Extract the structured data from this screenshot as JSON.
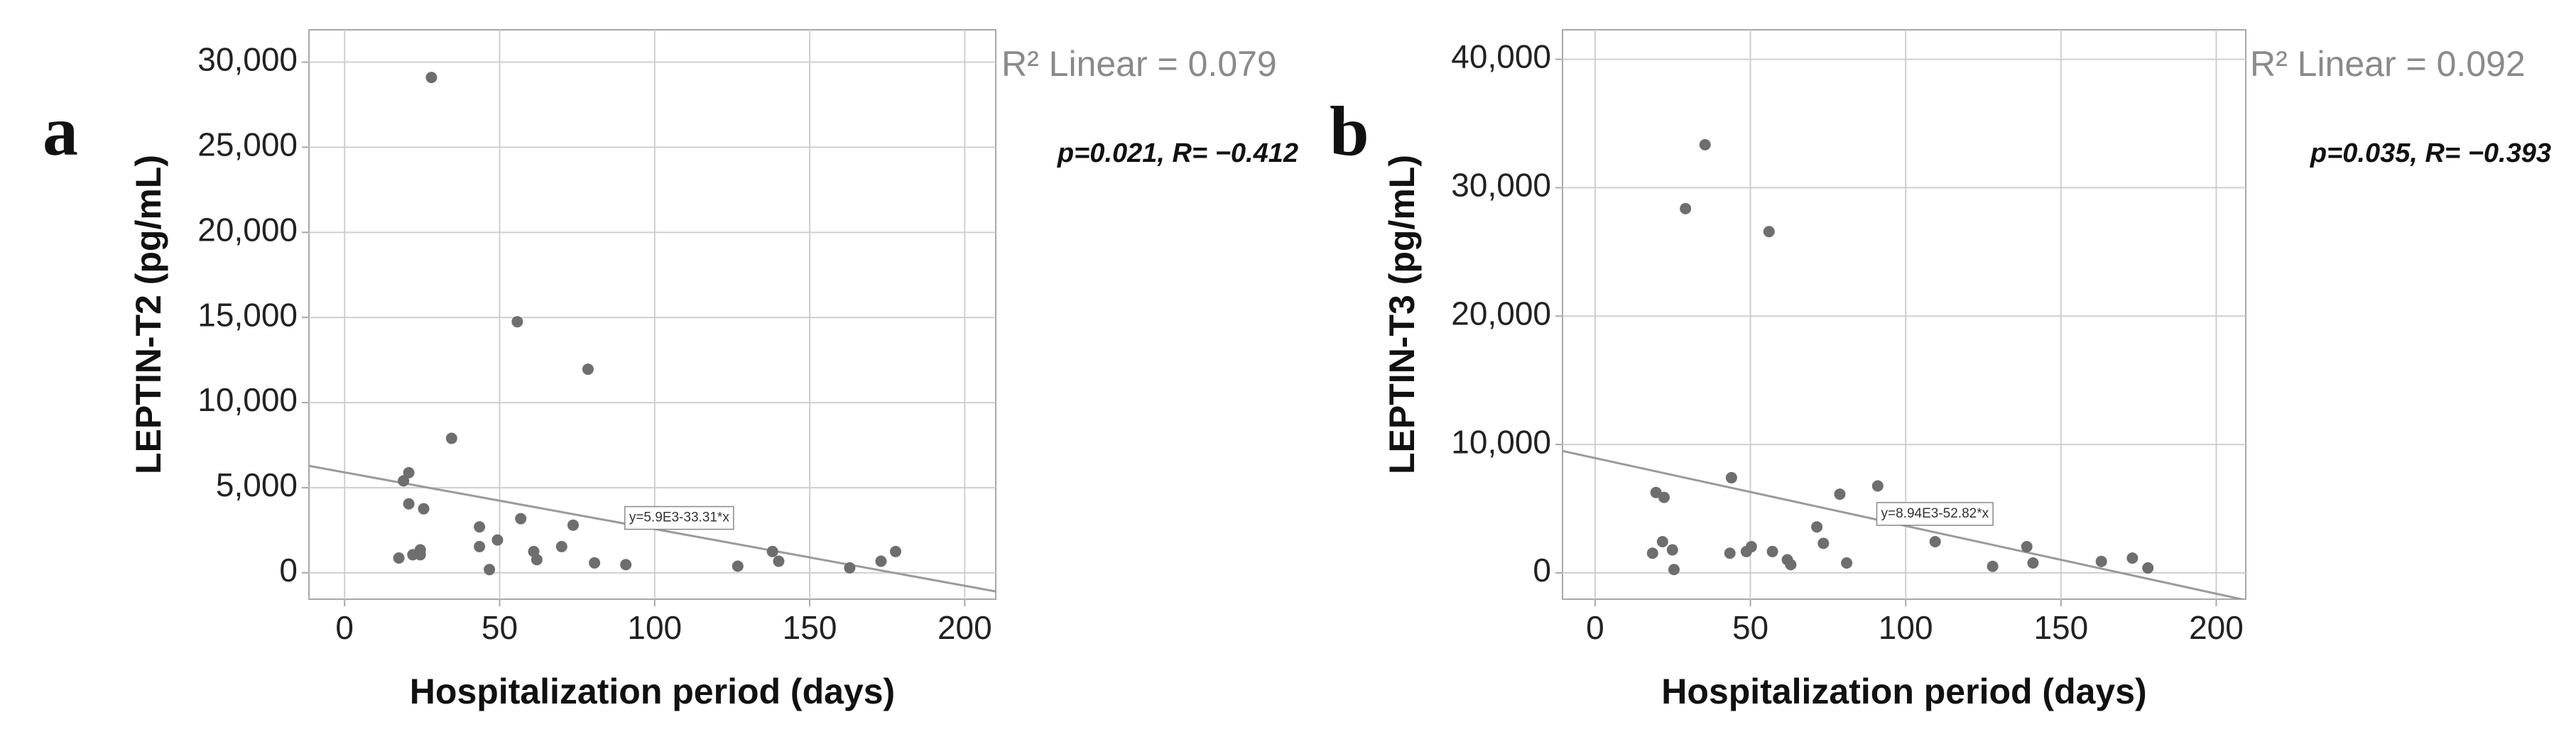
{
  "chart_data": [
    {
      "type": "scatter",
      "panel_label": "a",
      "x_label": "Hospitalization period (days)",
      "y_label": "LEPTIN-T2 (pg/mL)",
      "r_squared_label": "R² Linear = 0.079",
      "stats_label": "p=0.021, R= −0.412",
      "fit": {
        "label": "y=5.9E3-33.31*x",
        "intercept": 5900,
        "slope": -33.31
      },
      "color": "#6e6e6e",
      "grid": true,
      "xlim": [
        -11.5,
        210
      ],
      "ylim": [
        -1550,
        31900
      ],
      "xticks": [
        0,
        50,
        100,
        150,
        200
      ],
      "yticks": [
        0,
        {
          "value": 5000,
          "label": "5,000"
        },
        {
          "value": 10000,
          "label": "10,000"
        },
        {
          "value": 15000,
          "label": "15,000"
        },
        {
          "value": 20000,
          "label": "20,000"
        },
        {
          "value": 25000,
          "label": "25,000"
        },
        {
          "value": 30000,
          "label": "30,000"
        }
      ],
      "x": [
        17.5,
        19,
        20.7,
        20.7,
        22,
        24.4,
        24.4,
        25.5,
        28,
        34.5,
        43.5,
        43.5,
        46.7,
        49.3,
        55.7,
        56.8,
        61,
        62,
        70,
        73.7,
        78.5,
        80.6,
        90.7,
        126.8,
        138,
        140,
        162.9,
        173,
        177.7
      ],
      "values": [
        870,
        5400,
        5880,
        4050,
        1060,
        1350,
        1060,
        3760,
        29100,
        7900,
        2700,
        1540,
        190,
        1930,
        14750,
        3180,
        1250,
        770,
        1540,
        2800,
        11960,
        580,
        480,
        390,
        1250,
        680,
        290,
        680,
        1250
      ]
    },
    {
      "type": "scatter",
      "panel_label": "b",
      "x_label": "Hospitalization period (days)",
      "y_label": "LEPTIN-T3 (pg/mL)",
      "r_squared_label": "R² Linear = 0.092",
      "stats_label": "p=0.035, R= −0.393",
      "fit": {
        "label": "y=8.94E3-52.82*x",
        "intercept": 8940,
        "slope": -52.82
      },
      "color": "#6e6e6e",
      "grid": true,
      "xlim": [
        -10.5,
        209.5
      ],
      "ylim": [
        -2050,
        42300
      ],
      "xticks": [
        0,
        50,
        100,
        150,
        200
      ],
      "yticks": [
        0,
        {
          "value": 10000,
          "label": "10,000"
        },
        {
          "value": 20000,
          "label": "20,000"
        },
        {
          "value": 30000,
          "label": "30,000"
        },
        {
          "value": 40000,
          "label": "40,000"
        }
      ],
      "x": [
        18.5,
        19.6,
        21.7,
        22.2,
        24.9,
        25.4,
        29.1,
        35.4,
        43.4,
        43.9,
        48.7,
        50.3,
        56,
        57.1,
        61.9,
        63,
        71.4,
        73.5,
        78.8,
        81,
        91,
        109.5,
        128,
        139,
        141,
        163,
        173,
        178
      ],
      "values": [
        1530,
        6260,
        2430,
        5880,
        1790,
        260,
        28370,
        33350,
        1530,
        7410,
        1660,
        2040,
        26580,
        1660,
        1020,
        640,
        3580,
        2300,
        6130,
        770,
        6770,
        2430,
        510,
        2040,
        770,
        890,
        1150,
        380
      ]
    }
  ]
}
